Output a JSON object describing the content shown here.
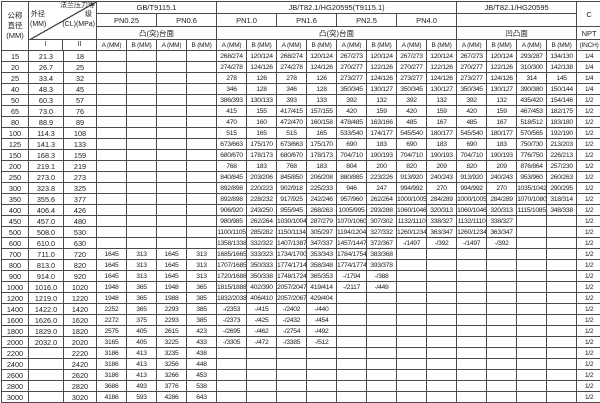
{
  "table": {
    "corner": {
      "dn_line1": "公称",
      "dn_line2": "直径",
      "dn_unit": "(MM)",
      "diag_label1": "法兰压力等",
      "diag_label2": "级",
      "od_label": "外径",
      "od_unit": "(MM)",
      "cl_unit": "(CL)(MPa)",
      "sub_i": "I",
      "sub_ii": "II"
    },
    "sections": [
      {
        "title": "GB/T9115.1",
        "pns": [
          "PN0.25",
          "PN0.6"
        ],
        "face": "凸(突)台面"
      },
      {
        "title": "JB/T82.1/HG20595(T9115.1)",
        "pns": [
          "PN1.0",
          "PN1.6",
          "PN2.5",
          "PN4.0"
        ],
        "face": "凸(突)台面"
      },
      {
        "title": "JB/T82.1/HG20595",
        "pns": [],
        "face": "凹凸面"
      }
    ],
    "c_col": {
      "title": "C",
      "sub": "NPT",
      "unit": "(INCH)"
    },
    "ab_pair": [
      "A (MM)",
      "B (MM)"
    ],
    "rows": [
      [
        "15",
        "21.3",
        "18",
        "",
        "",
        "",
        "",
        "268/274",
        "120/124",
        "268/274",
        "120/124",
        "267/273",
        "120/124",
        "267/273",
        "120/124",
        "267/273",
        "120/124",
        "293/287",
        "134/130",
        "1/4"
      ],
      [
        "20",
        "26.7",
        "25",
        "",
        "",
        "",
        "",
        "274/278",
        "124/126",
        "274/278",
        "124/126",
        "270/277",
        "122/126",
        "270/277",
        "122/126",
        "270/277",
        "122/126",
        "310/300",
        "142/138",
        "1/4"
      ],
      [
        "25",
        "33.4",
        "32",
        "",
        "",
        "",
        "",
        "278",
        "126",
        "278",
        "126",
        "273/277",
        "124/126",
        "273/277",
        "124/126",
        "273/277",
        "124/126",
        "314",
        "145",
        "1/4"
      ],
      [
        "40",
        "48.3",
        "45",
        "",
        "",
        "",
        "",
        "346",
        "128",
        "346",
        "128",
        "350/345",
        "130/127",
        "350/345",
        "130/127",
        "350/345",
        "130/127",
        "390/380",
        "150/144",
        "1/4"
      ],
      [
        "50",
        "60.3",
        "57",
        "",
        "",
        "",
        "",
        "386/393",
        "130/133",
        "393",
        "133",
        "392",
        "132",
        "392",
        "132",
        "392",
        "132",
        "435/420",
        "154/146",
        "1/2"
      ],
      [
        "65",
        "73.0",
        "76",
        "",
        "",
        "",
        "",
        "415",
        "155",
        "417/415",
        "157/155",
        "420",
        "159",
        "420",
        "159",
        "420",
        "159",
        "467/453",
        "182/175",
        "1/2"
      ],
      [
        "80",
        "88.9",
        "89",
        "",
        "",
        "",
        "",
        "470",
        "160",
        "472/470",
        "160/158",
        "478/485",
        "163/166",
        "485",
        "167",
        "485",
        "167",
        "518/512",
        "183/180",
        "1/2"
      ],
      [
        "100",
        "114.3",
        "108",
        "",
        "",
        "",
        "",
        "515",
        "165",
        "515",
        "165",
        "533/540",
        "174/177",
        "545/540",
        "180/177",
        "545/540",
        "180/177",
        "570/565",
        "192/190",
        "1/2"
      ],
      [
        "125",
        "141.3",
        "133",
        "",
        "",
        "",
        "",
        "673/663",
        "175/170",
        "673/663",
        "175/170",
        "690",
        "183",
        "690",
        "183",
        "690",
        "183",
        "750/730",
        "213/203",
        "1/2"
      ],
      [
        "150",
        "168.3",
        "159",
        "",
        "",
        "",
        "",
        "680/670",
        "178/173",
        "680/670",
        "178/173",
        "704/710",
        "190/193",
        "704/710",
        "190/193",
        "704/710",
        "190/193",
        "776/750",
        "226/213",
        "1/2"
      ],
      [
        "200",
        "219.1",
        "219",
        "",
        "",
        "",
        "",
        "768",
        "183",
        "768",
        "183",
        "804",
        "200",
        "820",
        "209",
        "820",
        "209",
        "876/864",
        "257/230",
        "1/2"
      ],
      [
        "250",
        "273.0",
        "273",
        "",
        "",
        "",
        "",
        "840/845",
        "203/206",
        "845/850",
        "206/208",
        "880/885",
        "223/226",
        "913/920",
        "240/243",
        "913/920",
        "240/243",
        "953/960",
        "260/263",
        "1/2"
      ],
      [
        "300",
        "323.8",
        "325",
        "",
        "",
        "",
        "",
        "892/898",
        "220/223",
        "902/918",
        "225/233",
        "946",
        "247",
        "994/992",
        "270",
        "994/992",
        "270",
        "1035/1042",
        "290/295",
        "1/2"
      ],
      [
        "350",
        "355.6",
        "377",
        "",
        "",
        "",
        "",
        "892/898",
        "228/232",
        "917/925",
        "242/246",
        "957/960",
        "262/264",
        "1000/1005",
        "284/289",
        "1000/1005",
        "284/289",
        "1070/1080",
        "318/314",
        "1/2"
      ],
      [
        "400",
        "406.4",
        "426",
        "",
        "",
        "",
        "",
        "906/920",
        "243/250",
        "955/945",
        "268/263",
        "1005/995",
        "293/288",
        "1060/1046",
        "320/313",
        "1060/1046",
        "320/313",
        "1115/1085",
        "348/338",
        "1/2"
      ],
      [
        "450",
        "457.0",
        "480",
        "",
        "",
        "",
        "",
        "980/985",
        "262/264",
        "1030/1004",
        "287/279",
        "1070/1060",
        "307/302",
        "1132/1110",
        "338/327",
        "1132/1110",
        "338/327",
        "",
        "",
        "1/2"
      ],
      [
        "500",
        "508.0",
        "530",
        "",
        "",
        "",
        "",
        "1100/1105",
        "285/282",
        "1150/1134",
        "305/297",
        "1194/1204",
        "327/332",
        "1260/1234",
        "363/347",
        "1260/1234",
        "363/347",
        "",
        "",
        "1/2"
      ],
      [
        "600",
        "610.0",
        "630",
        "",
        "",
        "",
        "",
        "1358/1338",
        "332/322",
        "1407/1387",
        "347/337",
        "1457/1447",
        "372/367",
        "-/1497",
        "-/392",
        "-/1497",
        "-/392",
        "",
        "",
        "1/2"
      ],
      [
        "700",
        "711.0",
        "720",
        "1645",
        "313",
        "1645",
        "313",
        "1685/1665",
        "333/323",
        "1734/1700",
        "353/343",
        "1784/1754",
        "383/368",
        "",
        "",
        "",
        "",
        "",
        "",
        "1/2"
      ],
      [
        "800",
        "813.0",
        "820",
        "1645",
        "313",
        "1645",
        "313",
        "1707/1685",
        "350/333",
        "1774/1714",
        "358/348",
        "1774/1774",
        "393/378",
        "",
        "",
        "",
        "",
        "",
        "",
        "1/2"
      ],
      [
        "900",
        "914.0",
        "920",
        "1645",
        "313",
        "1645",
        "313",
        "1720/1688",
        "350/338",
        "1748/1724",
        "365/353",
        "-/1794",
        "-/388",
        "",
        "",
        "",
        "",
        "",
        "",
        "1/2"
      ],
      [
        "1000",
        "1016.0",
        "1020",
        "1948",
        "365",
        "1948",
        "365",
        "1815/1888",
        "402/390",
        "2057/2047",
        "419/414",
        "-/2117",
        "-/449",
        "",
        "",
        "",
        "",
        "",
        "",
        "1/2"
      ],
      [
        "1200",
        "1219.0",
        "1220",
        "1948",
        "365",
        "1988",
        "385",
        "1832/2038",
        "406/410",
        "2057/2067",
        "429/404",
        "",
        "",
        "",
        "",
        "",
        "",
        "",
        "",
        "1/2"
      ],
      [
        "1400",
        "1422.0",
        "1420",
        "2252",
        "365",
        "2293",
        "385",
        "-/2353",
        "-/415",
        "-/2402",
        "-/440",
        "",
        "",
        "",
        "",
        "",
        "",
        "",
        "",
        "1/2"
      ],
      [
        "1600",
        "1626.0",
        "1620",
        "2272",
        "375",
        "2293",
        "385",
        "-/2373",
        "-/425",
        "-/2432",
        "-/454",
        "",
        "",
        "",
        "",
        "",
        "",
        "",
        "",
        "1/2"
      ],
      [
        "1800",
        "1829.0",
        "1820",
        "2575",
        "405",
        "2615",
        "423",
        "-/2695",
        "-/462",
        "-/2754",
        "-/492",
        "",
        "",
        "",
        "",
        "",
        "",
        "",
        "",
        "1/2"
      ],
      [
        "2000",
        "2032.0",
        "2020",
        "3165",
        "405",
        "3225",
        "433",
        "-/3305",
        "-/472",
        "-/3385",
        "-/512",
        "",
        "",
        "",
        "",
        "",
        "",
        "",
        "",
        "1/2"
      ],
      [
        "2200",
        "",
        "2220",
        "3186",
        "413",
        "3235",
        "438",
        "",
        "",
        "",
        "",
        "",
        "",
        "",
        "",
        "",
        "",
        "",
        "",
        "1/2"
      ],
      [
        "2400",
        "",
        "2420",
        "3186",
        "413",
        "3256",
        "448",
        "",
        "",
        "",
        "",
        "",
        "",
        "",
        "",
        "",
        "",
        "",
        "",
        "1/2"
      ],
      [
        "2600",
        "",
        "2620",
        "3186",
        "413",
        "3266",
        "453",
        "",
        "",
        "",
        "",
        "",
        "",
        "",
        "",
        "",
        "",
        "",
        "",
        "1/2"
      ],
      [
        "2800",
        "",
        "2820",
        "3686",
        "493",
        "3776",
        "538",
        "",
        "",
        "",
        "",
        "",
        "",
        "",
        "",
        "",
        "",
        "",
        "",
        "1/2"
      ],
      [
        "3000",
        "",
        "3020",
        "4186",
        "593",
        "4286",
        "643",
        "",
        "",
        "",
        "",
        "",
        "",
        "",
        "",
        "",
        "",
        "",
        "",
        "1/2"
      ]
    ]
  }
}
